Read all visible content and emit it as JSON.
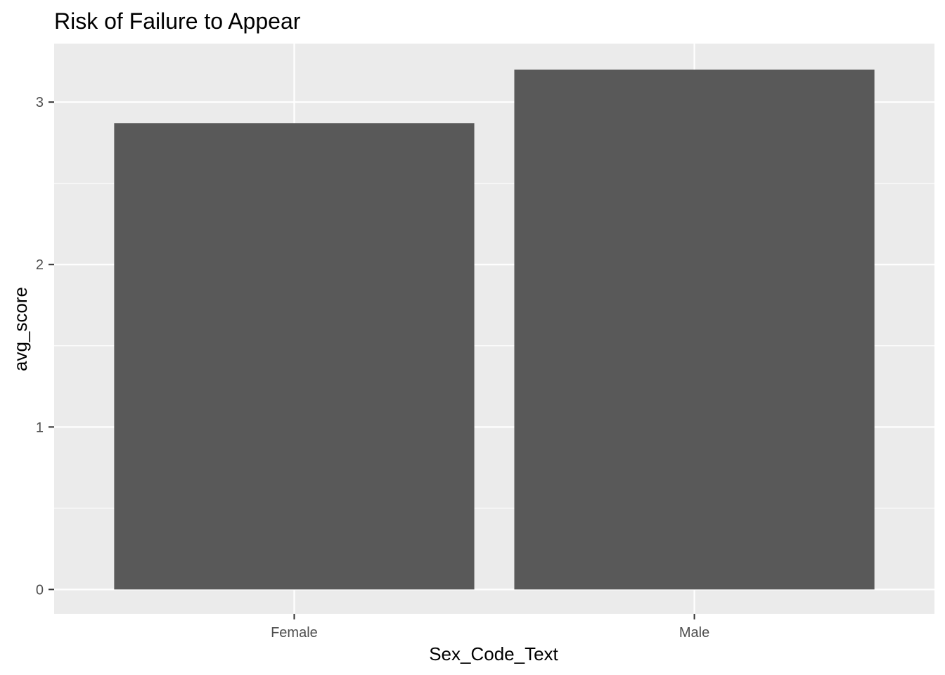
{
  "chart_data": {
    "type": "bar",
    "title": "Risk of Failure to Appear",
    "xlabel": "Sex_Code_Text",
    "ylabel": "avg_score",
    "categories": [
      "Female",
      "Male"
    ],
    "values": [
      2.87,
      3.2
    ],
    "ylim": [
      -0.15,
      3.36
    ],
    "yticks": [
      0,
      1,
      2,
      3
    ],
    "grid": true,
    "colors": {
      "bar": "#595959",
      "panel_background": "#ebebeb",
      "gridline": "#ffffff",
      "tick_mark": "#333333",
      "tick_text": "#4d4d4d"
    }
  }
}
